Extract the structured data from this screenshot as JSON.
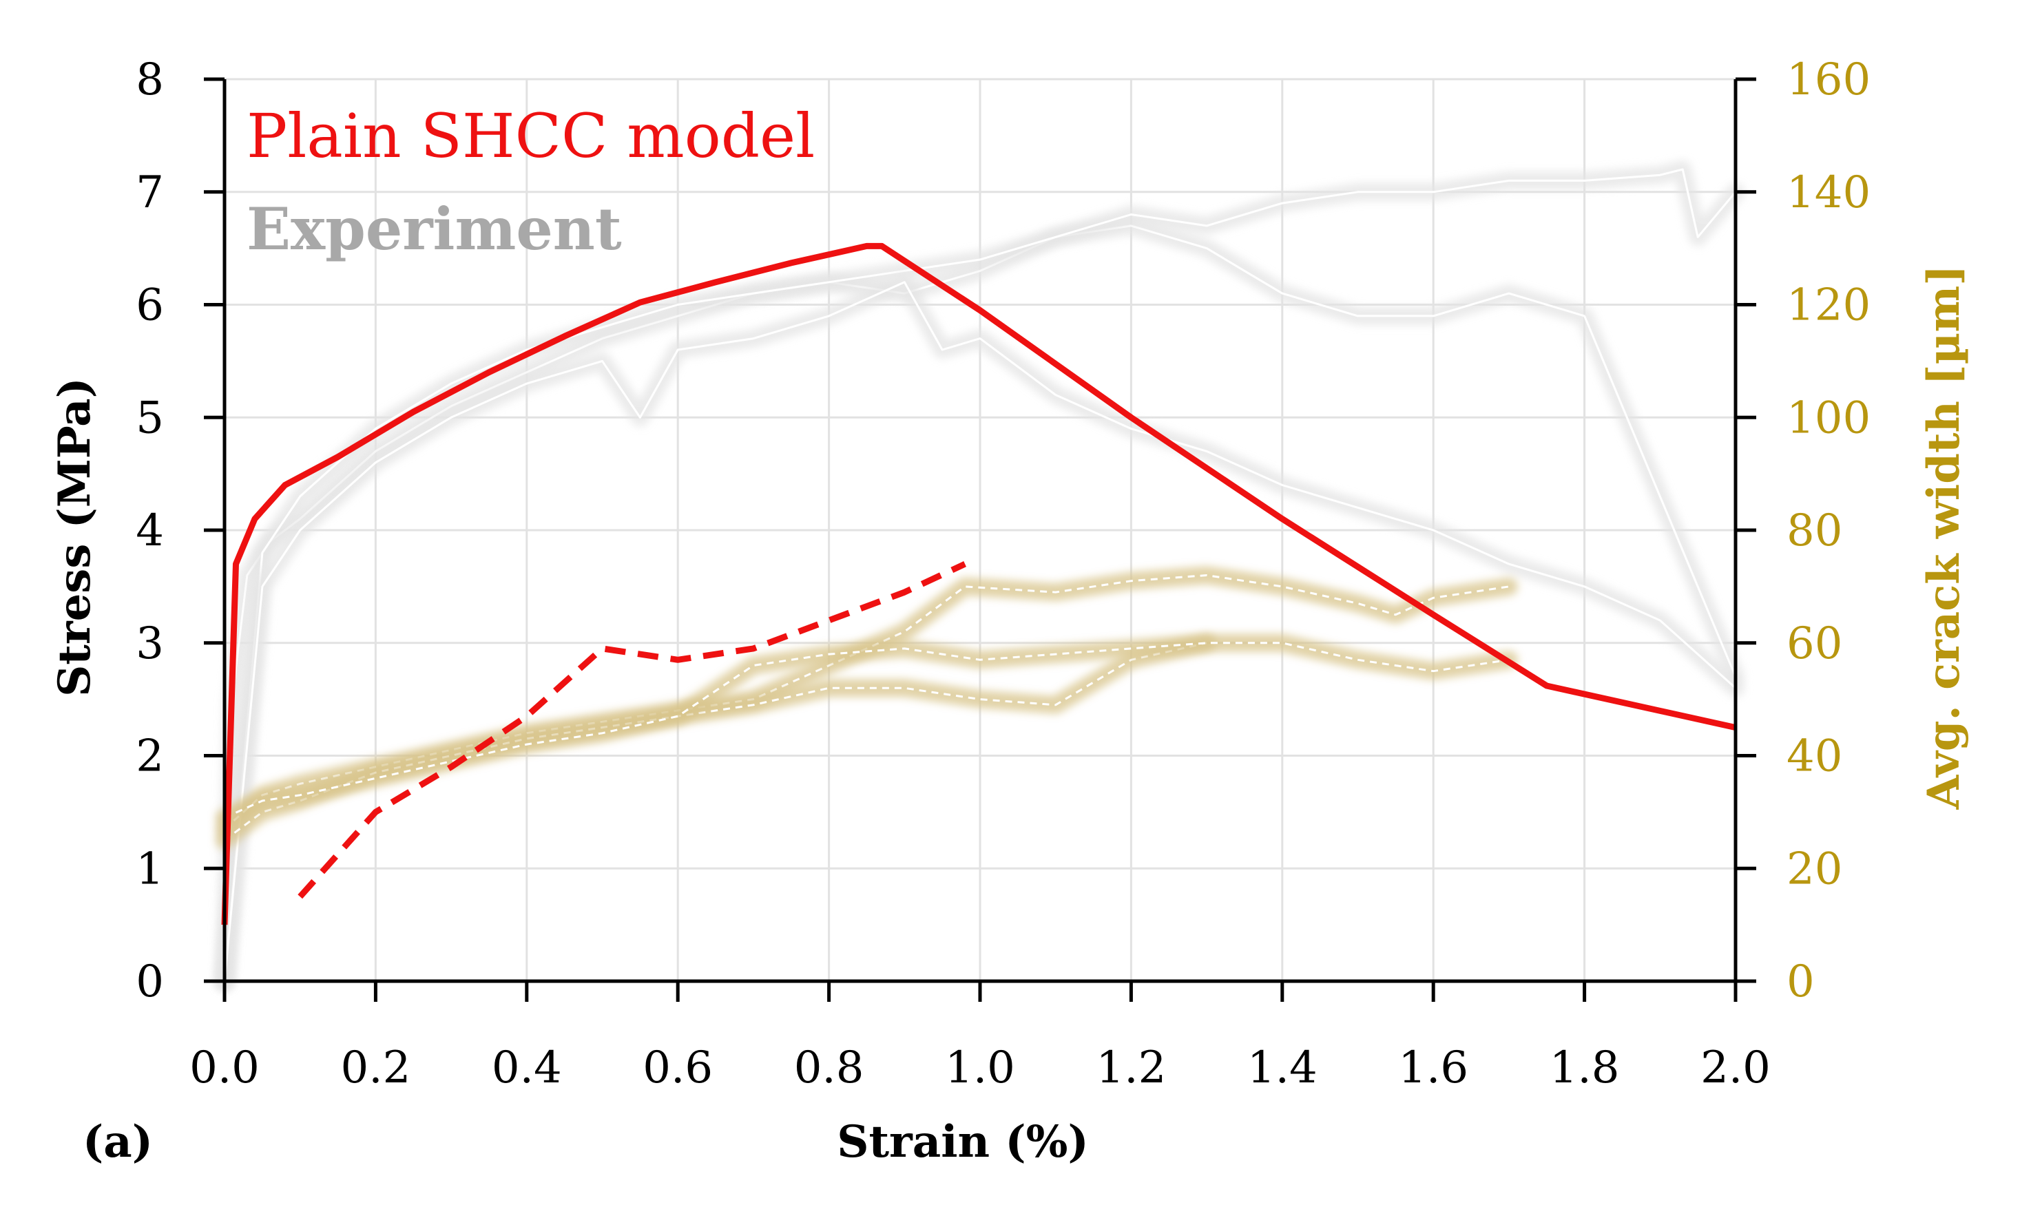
{
  "chart_data": {
    "type": "line",
    "panel_label": "(a)",
    "xlabel": "Strain (%)",
    "ylabel_left": "Stress (MPa)",
    "ylabel_right": "Avg. crack width [µm]",
    "xlim": [
      0.0,
      2.0
    ],
    "ylim_left": [
      0,
      8
    ],
    "ylim_right": [
      0,
      160
    ],
    "x_ticks": [
      "0.0",
      "0.2",
      "0.4",
      "0.6",
      "0.8",
      "1.0",
      "1.2",
      "1.4",
      "1.6",
      "1.8",
      "2.0"
    ],
    "y_left_ticks": [
      "0",
      "1",
      "2",
      "3",
      "4",
      "5",
      "6",
      "7",
      "8"
    ],
    "y_right_ticks": [
      "0",
      "20",
      "40",
      "60",
      "80",
      "100",
      "120",
      "140",
      "160"
    ],
    "grid": true,
    "legend": [
      {
        "label": "Plain SHCC model",
        "color": "#ee1111"
      },
      {
        "label": "Experiment",
        "color": "#a8a8a8"
      }
    ],
    "colors": {
      "model": "#ee1111",
      "experiment_stress": "#dedede",
      "experiment_crack": "#d8c48a",
      "right_axis": "#b8960f",
      "grid": "#e2e2e2"
    },
    "series": [
      {
        "name": "Model stress",
        "axis": "left",
        "style": "solid",
        "x": [
          0.0,
          0.015,
          0.04,
          0.08,
          0.15,
          0.25,
          0.35,
          0.45,
          0.55,
          0.65,
          0.75,
          0.85,
          0.87,
          1.0,
          1.2,
          1.4,
          1.6,
          1.75,
          2.0
        ],
        "y": [
          0.5,
          3.7,
          4.1,
          4.4,
          4.65,
          5.05,
          5.4,
          5.72,
          6.02,
          6.2,
          6.37,
          6.52,
          6.52,
          5.95,
          5.0,
          4.1,
          3.25,
          2.62,
          2.25
        ]
      },
      {
        "name": "Model crack width",
        "axis": "right",
        "style": "dashed",
        "x": [
          0.1,
          0.2,
          0.3,
          0.4,
          0.5,
          0.6,
          0.7,
          0.8,
          0.9,
          0.98
        ],
        "y": [
          15,
          30,
          38,
          47,
          59,
          57,
          59,
          64,
          69,
          74
        ]
      },
      {
        "name": "Experiment stress 1",
        "axis": "left",
        "style": "experiment",
        "x": [
          0.0,
          0.01,
          0.03,
          0.06,
          0.1,
          0.15,
          0.2,
          0.3,
          0.4,
          0.5,
          0.6,
          0.7,
          0.8,
          0.9,
          1.0,
          1.1,
          1.2,
          1.3,
          1.35,
          1.4,
          1.5,
          1.6,
          1.7,
          1.8,
          2.0
        ],
        "y": [
          0,
          2.5,
          3.6,
          3.9,
          4.1,
          4.4,
          4.7,
          5.1,
          5.4,
          5.7,
          5.9,
          6.1,
          6.2,
          6.1,
          6.3,
          6.6,
          6.7,
          6.5,
          6.3,
          6.1,
          5.9,
          5.9,
          6.1,
          5.9,
          2.7
        ]
      },
      {
        "name": "Experiment stress 2",
        "axis": "left",
        "style": "experiment",
        "x": [
          0.0,
          0.05,
          0.1,
          0.2,
          0.3,
          0.4,
          0.5,
          0.6,
          0.7,
          0.8,
          0.9,
          1.0,
          1.1,
          1.2,
          1.3,
          1.4,
          1.5,
          1.6,
          1.7,
          1.8,
          1.9,
          1.93,
          1.95,
          2.0
        ],
        "y": [
          0,
          3.8,
          4.3,
          4.9,
          5.3,
          5.6,
          5.8,
          6.0,
          6.1,
          6.2,
          6.3,
          6.4,
          6.6,
          6.8,
          6.7,
          6.9,
          7.0,
          7.0,
          7.1,
          7.1,
          7.15,
          7.2,
          6.6,
          7.0
        ]
      },
      {
        "name": "Experiment stress 3",
        "axis": "left",
        "style": "experiment",
        "x": [
          0.0,
          0.05,
          0.1,
          0.2,
          0.3,
          0.4,
          0.5,
          0.55,
          0.6,
          0.7,
          0.8,
          0.9,
          0.95,
          1.0,
          1.1,
          1.2,
          1.3,
          1.4,
          1.5,
          1.6,
          1.7,
          1.8,
          1.9,
          2.0
        ],
        "y": [
          0,
          3.5,
          4.0,
          4.6,
          5.0,
          5.3,
          5.5,
          5.0,
          5.6,
          5.7,
          5.9,
          6.2,
          5.6,
          5.7,
          5.2,
          4.9,
          4.7,
          4.4,
          4.2,
          4.0,
          3.7,
          3.5,
          3.2,
          2.6
        ]
      },
      {
        "name": "Experiment crack width 1",
        "axis": "right",
        "style": "experiment-dashed",
        "x": [
          0.0,
          0.05,
          0.1,
          0.2,
          0.3,
          0.4,
          0.5,
          0.6,
          0.7,
          0.8,
          0.9,
          0.98,
          1.1,
          1.2,
          1.3,
          1.4,
          1.5,
          1.55,
          1.6,
          1.7
        ],
        "y": [
          27,
          33,
          35,
          38,
          41,
          44,
          46,
          48,
          50,
          56,
          62,
          70,
          69,
          71,
          72,
          70,
          67,
          65,
          68,
          70
        ]
      },
      {
        "name": "Experiment crack width 2",
        "axis": "right",
        "style": "experiment-dashed",
        "x": [
          0.0,
          0.05,
          0.1,
          0.2,
          0.3,
          0.4,
          0.5,
          0.6,
          0.7,
          0.8,
          0.9,
          1.0,
          1.1,
          1.2,
          1.3
        ],
        "y": [
          25,
          30,
          32,
          37,
          40,
          43,
          45,
          47,
          49,
          52,
          52,
          50,
          49,
          57,
          60
        ]
      },
      {
        "name": "Experiment crack width 3",
        "axis": "right",
        "style": "experiment-dashed",
        "x": [
          0.0,
          0.05,
          0.1,
          0.2,
          0.3,
          0.4,
          0.5,
          0.6,
          0.7,
          0.8,
          0.9,
          1.0,
          1.1,
          1.2,
          1.3,
          1.4,
          1.5,
          1.6,
          1.7
        ],
        "y": [
          29,
          32,
          33,
          36,
          39,
          42,
          44,
          47,
          56,
          58,
          59,
          57,
          58,
          59,
          60,
          60,
          57,
          55,
          57
        ]
      }
    ]
  }
}
